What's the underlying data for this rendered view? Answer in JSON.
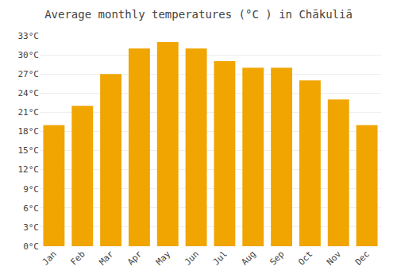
{
  "chart_data": {
    "type": "bar",
    "title": "Average monthly temperatures (°C ) in Chākuliā",
    "categories": [
      "Jan",
      "Feb",
      "Mar",
      "Apr",
      "May",
      "Jun",
      "Jul",
      "Aug",
      "Sep",
      "Oct",
      "Nov",
      "Dec"
    ],
    "values": [
      19,
      22,
      27,
      31,
      32,
      31,
      29,
      28,
      28,
      26,
      23,
      19
    ],
    "color": "#F0A500",
    "ylim": [
      0,
      33
    ],
    "yticks": [
      {
        "value": 0,
        "label": "0°C"
      },
      {
        "value": 3,
        "label": "3°C"
      },
      {
        "value": 6,
        "label": "6°C"
      },
      {
        "value": 9,
        "label": "9°C"
      },
      {
        "value": 12,
        "label": "12°C"
      },
      {
        "value": 15,
        "label": "15°C"
      },
      {
        "value": 18,
        "label": "18°C"
      },
      {
        "value": 21,
        "label": "21°C"
      },
      {
        "value": 24,
        "label": "24°C"
      },
      {
        "value": 27,
        "label": "27°C"
      },
      {
        "value": 30,
        "label": "30°C"
      },
      {
        "value": 33,
        "label": "33°C"
      }
    ],
    "grid": true
  }
}
